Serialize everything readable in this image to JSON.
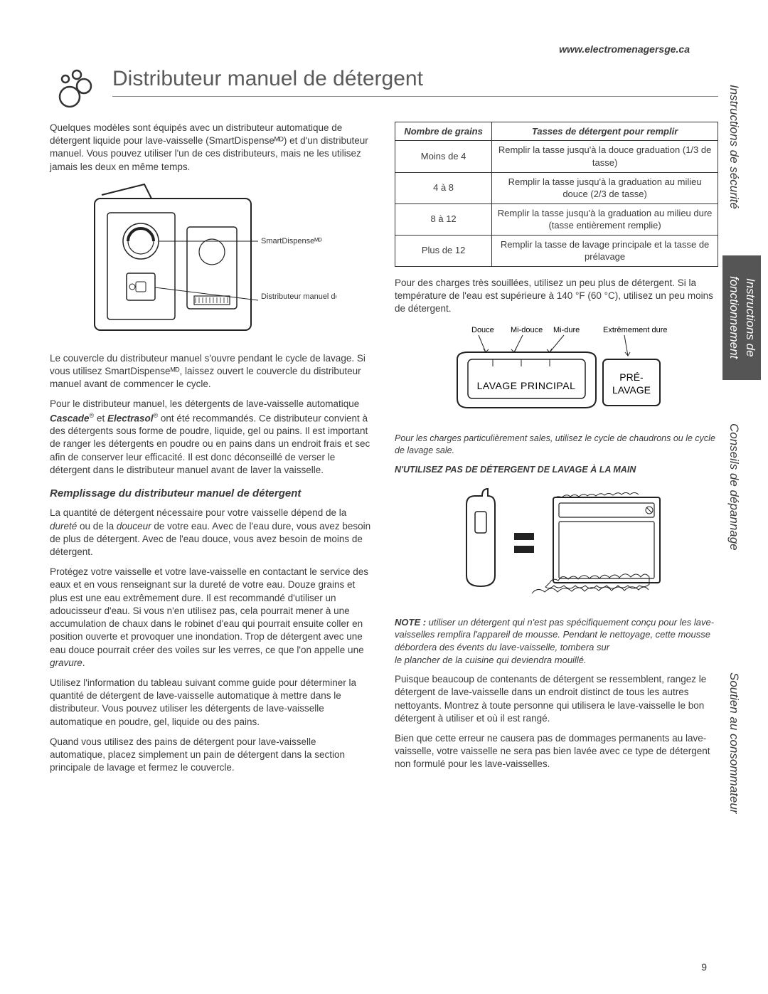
{
  "url": "www.electromenagersge.ca",
  "title": "Distributeur manuel de détergent",
  "intro": "Quelques modèles sont équipés avec un distributeur automatique de détergent liquide pour lave-vaisselle (SmartDispenseᴹᴰ) et d'un distributeur manuel. Vous pouvez utiliser l'un de ces distributeurs, mais ne les utilisez jamais les deux en même temps.",
  "diagram_labels": {
    "smart": "SmartDispenseᴹᴰ",
    "manual": "Distributeur manuel de détergent"
  },
  "para1": "Le couvercle du distributeur manuel s'ouvre pendant le cycle de lavage. Si vous utilisez SmartDispenseᴹᴰ, laissez ouvert le couvercle du distributeur manuel avant de commencer le cycle.",
  "para2a": "Pour le distributeur manuel, les détergents de lave-vaisselle automatique ",
  "para2b": " ont été recommandés. Ce distributeur convient à des détergents sous forme de poudre, liquide, gel ou pains. Il est important de ranger les détergents en poudre ou en pains dans un endroit frais et sec afin de conserver leur efficacité. Il est donc déconseillé de verser le détergent dans le distributeur manuel avant de laver la vaisselle.",
  "brand1": "Cascade",
  "brand_sep": " et ",
  "brand2": "Electrasol",
  "reg": "®",
  "subhead": "Remplissage du distributeur manuel de détergent",
  "p3a": "La quantité de détergent nécessaire pour votre vaisselle dépend de la ",
  "p3d1": "dureté",
  "p3m": " ou de la ",
  "p3d2": "douceur",
  "p3b": " de votre eau. Avec de l'eau dure, vous avez besoin de plus de détergent. Avec de l'eau douce, vous avez besoin de moins de détergent.",
  "p4": "Protégez votre vaisselle et votre lave-vaisselle en contactant le service des eaux et en vous renseignant sur la dureté de votre eau. Douze grains et plus est une eau extrêmement dure. Il est recommandé d'utiliser un adoucisseur d'eau. Si vous n'en utilisez pas, cela pourrait mener à une accumulation de chaux dans le robinet d'eau qui pourrait ensuite coller en position ouverte et provoquer une inondation. Trop de détergent avec une eau douce pourrait créer des voiles sur les verres, ce que l'on appelle une ",
  "p4i": "gravure",
  "p5": "Utilisez l'information du tableau suivant comme guide pour déterminer la quantité de détergent de lave-vaisselle automatique à mettre dans le distributeur. Vous pouvez utiliser les détergents de lave-vaisselle automatique en poudre, gel, liquide ou des pains.",
  "p6": "Quand vous utilisez des pains de détergent pour lave-vaisselle automatique, placez simplement un pain de détergent dans la section principale de lavage et fermez le couvercle.",
  "table": {
    "head": [
      "Nombre de grains",
      "Tasses de détergent pour remplir"
    ],
    "rows": [
      [
        "Moins de 4",
        "Remplir la tasse jusqu'à la douce graduation (1/3 de tasse)"
      ],
      [
        "4 à 8",
        "Remplir la tasse jusqu'à la graduation au milieu douce (2/3 de tasse)"
      ],
      [
        "8 à 12",
        "Remplir la tasse jusqu'à la graduation au milieu dure (tasse entièrement remplie)"
      ],
      [
        "Plus de 12",
        "Remplir la tasse de lavage principale et la tasse de prélavage"
      ]
    ]
  },
  "r1": "Pour des charges très souillées, utilisez un peu plus de détergent. Si la température de l'eau est supérieure à 140 °F (60 °C), utilisez un peu moins de détergent.",
  "scale": {
    "l1": "Douce",
    "l2": "Mi-douce",
    "l3": "Mi-dure",
    "l4": "Extrêmement dure",
    "main": "LAVAGE PRINCIPAL",
    "pre1": "PRÉ-",
    "pre2": "LAVAGE"
  },
  "r2": "Pour les charges particulièrement sales, utilisez le cycle de chaudrons ou le cycle de lavage sale.",
  "warn": "N'UTILISEZ PAS DE DÉTERGENT DE LAVAGE À LA MAIN",
  "note_pre": "NOTE : ",
  "note": "utiliser un détergent qui n'est pas spécifiquement conçu pour les lave-vaisselles remplira l'appareil de mousse. Pendant le nettoyage, cette mousse débordera des évents du lave-vaisselle, tombera sur",
  "note2": "le plancher de la cuisine qui deviendra mouillé.",
  "r3": "Puisque beaucoup de contenants de détergent se ressemblent, rangez le détergent de lave-vaisselle dans un endroit distinct de tous les autres nettoyants. Montrez à toute personne qui utilisera le lave-vaisselle le bon détergent à utiliser et où il est rangé.",
  "r4": "Bien que cette erreur ne causera pas de dommages permanents au lave-vaisselle, votre vaisselle ne sera pas bien lavée avec ce type de détergent non formulé pour les lave-vaisselles.",
  "tabs": [
    "Instructions de sécurité",
    "Instructions de fonctionnement",
    "Conseils de dépannage",
    "Soutien au consommateur"
  ],
  "tab_heights": [
    305,
    175,
    300,
    420
  ],
  "active_tab": 1,
  "page_num": "9",
  "colors": {
    "text": "#3a3a3a",
    "heading": "#5a5a5a",
    "tab_active_bg": "#555",
    "tab_active_fg": "#fff",
    "rule": "#333"
  }
}
